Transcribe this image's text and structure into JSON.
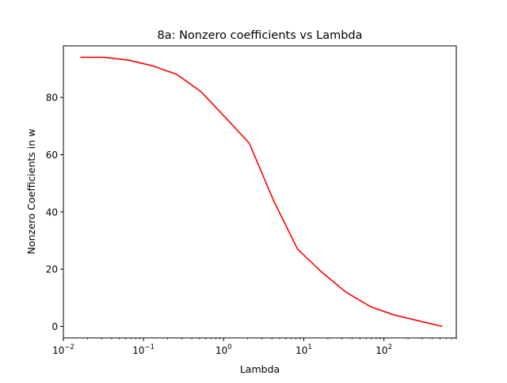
{
  "chart_data": {
    "type": "line",
    "title": "8a: Nonzero coefficients vs Lambda",
    "xlabel": "Lambda",
    "ylabel": "Nonzero Coefficients in w",
    "xscale": "log",
    "xlim": [
      0.01,
      800
    ],
    "ylim": [
      -4,
      98
    ],
    "grid": false,
    "legend": "none",
    "x_ticks": [
      {
        "value": 0.01,
        "base": "10",
        "exp": "−2"
      },
      {
        "value": 0.1,
        "base": "10",
        "exp": "−1"
      },
      {
        "value": 1,
        "base": "10",
        "exp": "0"
      },
      {
        "value": 10,
        "base": "10",
        "exp": "1"
      },
      {
        "value": 100,
        "base": "10",
        "exp": "2"
      }
    ],
    "y_ticks": [
      0,
      20,
      40,
      60,
      80
    ],
    "series": [
      {
        "color": "#ff0000",
        "x": [
          0.0163,
          0.0327,
          0.0654,
          0.131,
          0.262,
          0.523,
          1.05,
          2.09,
          4.19,
          8.37,
          16.7,
          33.5,
          67.0,
          134,
          268,
          536
        ],
        "y": [
          94,
          94,
          93,
          91,
          88,
          82,
          73,
          64,
          44,
          27,
          19,
          12,
          7,
          4,
          2,
          0
        ]
      }
    ]
  }
}
